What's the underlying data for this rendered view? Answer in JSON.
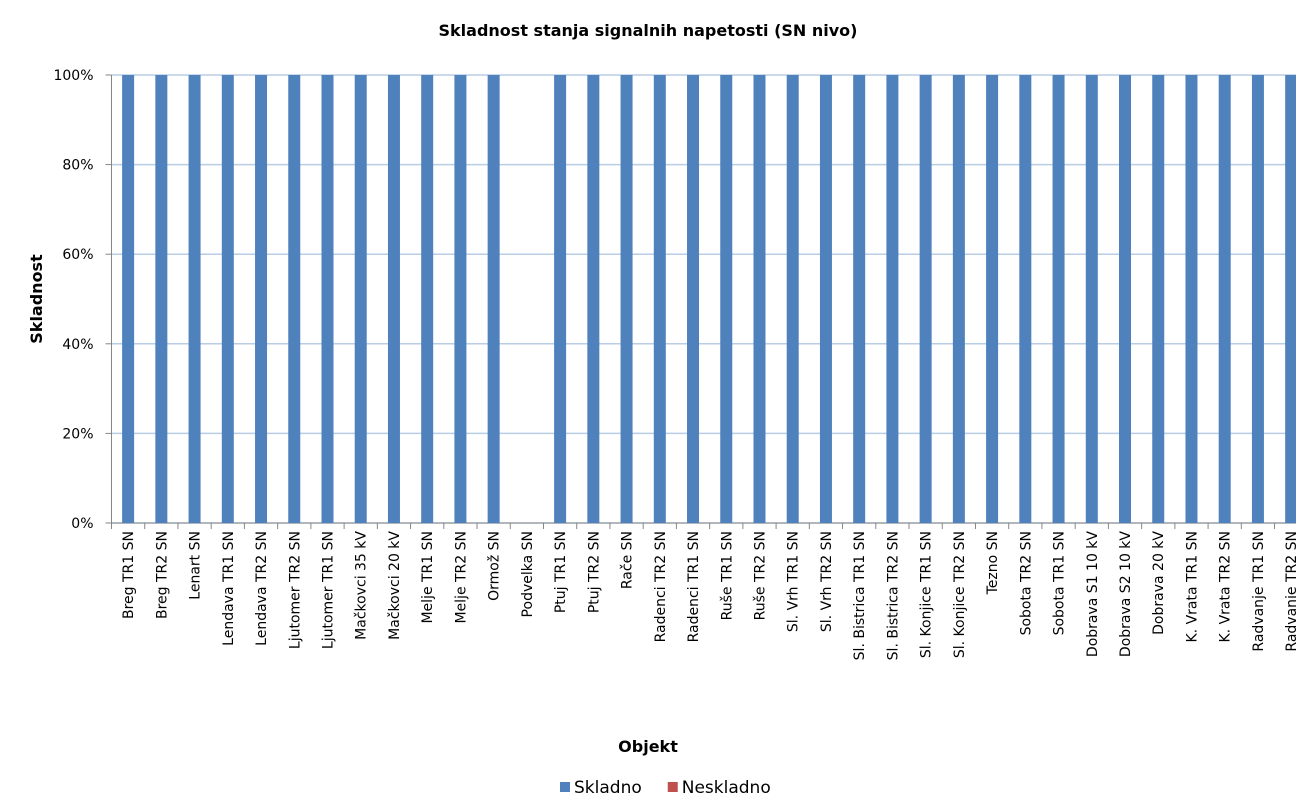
{
  "chart_data": {
    "type": "stacked_bar",
    "title": "Skladnost stanja signalnih napetosti (SN nivo)",
    "x_label": "Objekt",
    "y_label": "Skladnost",
    "categories": [
      "Breg TR1 SN",
      "Breg TR2 SN",
      "Lenart SN",
      "Lendava TR1 SN",
      "Lendava TR2 SN",
      "Ljutomer TR2 SN",
      "Ljutomer TR1 SN",
      "Mačkovci 35 kV",
      "Mačkovci 20 kV",
      "Melje TR1 SN",
      "Melje TR2 SN",
      "Ormož SN",
      "Podvelka SN",
      "Ptuj TR1 SN",
      "Ptuj TR2 SN",
      "Rače SN",
      "Radenci TR2 SN",
      "Radenci TR1 SN",
      "Ruše TR1 SN",
      "Ruše TR2 SN",
      "Sl. Vrh TR1 SN",
      "Sl. Vrh TR2 SN",
      "Sl. Bistrica TR1 SN",
      "Sl. Bistrica TR2 SN",
      "Sl. Konjice TR1 SN",
      "Sl. Konjice TR2 SN",
      "Tezno SN",
      "Sobota TR2 SN",
      "Sobota TR1 SN",
      "Dobrava S1 10 kV",
      "Dobrava S2 10 kV",
      "Dobrava 20 kV",
      "K. Vrata TR1 SN",
      "K. Vrata TR2 SN",
      "Radvanje TR1 SN",
      "Radvanje TR2 SN"
    ],
    "series": [
      {
        "name": "Skladno",
        "color": "#4f81bd",
        "values": [
          100,
          100,
          100,
          100,
          100,
          100,
          100,
          100,
          100,
          100,
          100,
          100,
          0,
          100,
          100,
          100,
          100,
          100,
          100,
          100,
          100,
          100,
          100,
          100,
          100,
          100,
          100,
          100,
          100,
          100,
          100,
          100,
          100,
          100,
          100,
          100
        ]
      },
      {
        "name": "Neskladno",
        "color": "#c0504d",
        "values": [
          0,
          0,
          0,
          0,
          0,
          0,
          0,
          0,
          0,
          0,
          0,
          0,
          0,
          0,
          0,
          0,
          0,
          0,
          0,
          0,
          0,
          0,
          0,
          0,
          0,
          0,
          0,
          0,
          0,
          0,
          0,
          0,
          0,
          0,
          0,
          0
        ]
      }
    ],
    "ylim": [
      0,
      100
    ],
    "yticks": [
      {
        "value": 0,
        "label": "0%"
      },
      {
        "value": 20,
        "label": "20%"
      },
      {
        "value": 40,
        "label": "40%"
      },
      {
        "value": 60,
        "label": "60%"
      },
      {
        "value": 80,
        "label": "80%"
      },
      {
        "value": 100,
        "label": "100%"
      }
    ],
    "grid": true,
    "legend": "bottom"
  }
}
